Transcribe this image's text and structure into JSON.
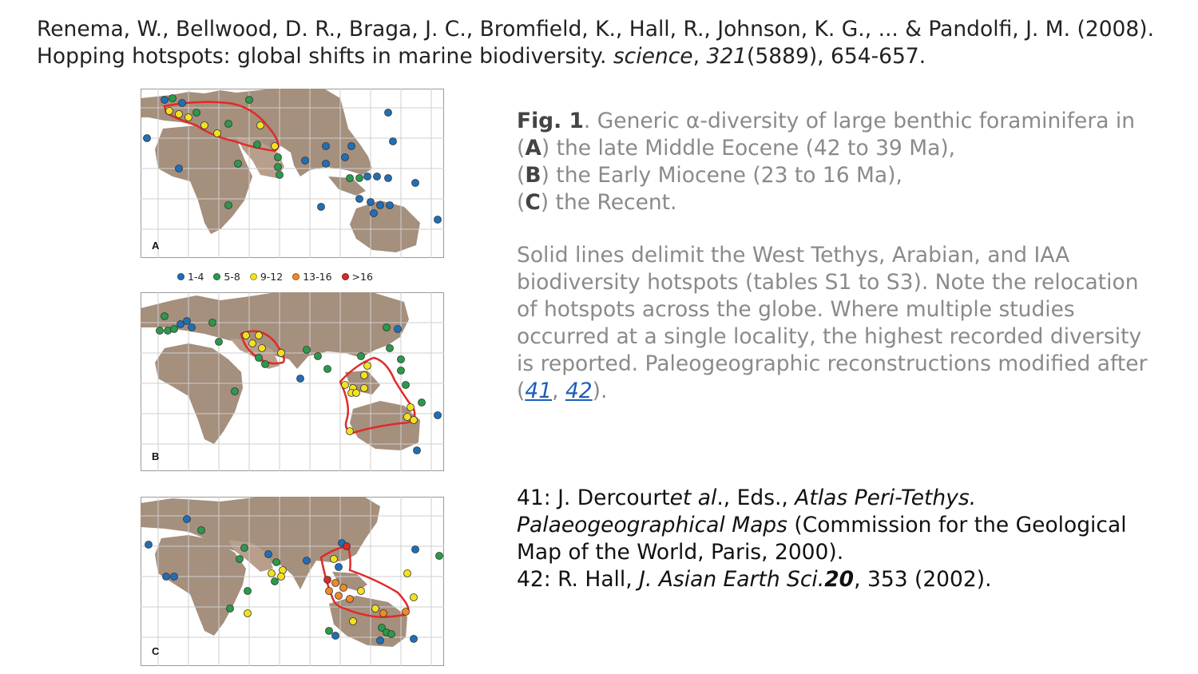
{
  "citation": {
    "authors": "Renema, W., Bellwood, D. R., Braga, J. C., Bromfield, K., Hall, R., Johnson, K. G., ... & Pandolfi, J. M.",
    "year": "(2008).",
    "title": "Hopping hotspots: global shifts in marine biodiversity.",
    "journal": "science",
    "volume": "321",
    "issue": "(5889)",
    "pages": "654-657."
  },
  "legend": [
    {
      "label": "1-4",
      "color": "#1f6fb8"
    },
    {
      "label": "5-8",
      "color": "#2a9a4a"
    },
    {
      "label": "9-12",
      "color": "#f2e21e"
    },
    {
      "label": "13-16",
      "color": "#f08a24"
    },
    {
      "label": ">16",
      "color": "#d42b2b"
    }
  ],
  "panels": {
    "a": {
      "label": "A"
    },
    "b": {
      "label": "B"
    },
    "c": {
      "label": "C"
    }
  },
  "caption": {
    "fig_label": "Fig. 1",
    "intro": ". Generic α-diversity of large benthic foraminifera in",
    "a_letter": "A",
    "a_text": ") the late Middle Eocene (42 to 39 Ma),",
    "b_letter": "B",
    "b_text": ") the Early Miocene (23 to 16 Ma),",
    "c_letter": "C",
    "c_text": ") the Recent.",
    "para2": "Solid lines delimit the West Tethys, Arabian, and IAA biodiversity hotspots (tables S1 to S3). Note the relocation of hotspots across the globe. Where multiple studies occurred at a single locality, the highest recorded diversity is reported. Paleogeographic reconstructions modified after",
    "ref41": "41",
    "ref42": "42"
  },
  "refs": {
    "r41_prefix": "41: J. Dercourt",
    "r41_etal": "et al",
    "r41_eds": "., Eds.,",
    "r41_title": "Atlas Peri-Tethys. Palaeogeographical Maps",
    "r41_rest": "(Commission for the Geological Map of the World, Paris, 2000).",
    "r42_prefix": "42: R. Hall,",
    "r42_journal": "J. Asian Earth Sci.",
    "r42_vol": "20",
    "r42_rest": ", 353 (2002)."
  }
}
